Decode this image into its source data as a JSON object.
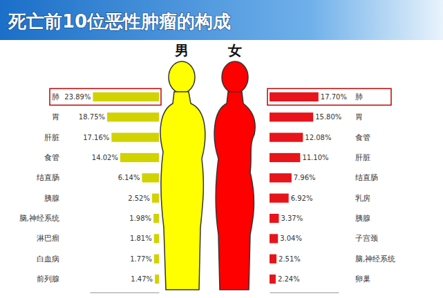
{
  "title": "死亡前10位恶性肿瘤的构成",
  "chart_data": [
    {
      "type": "bar",
      "title": "男",
      "orientation": "horizontal",
      "categories": [
        "肺",
        "胃",
        "肝脏",
        "食管",
        "结直肠",
        "胰腺",
        "脑,神经系统",
        "淋巴瘤",
        "白血病",
        "前列腺"
      ],
      "values": [
        23.89,
        18.75,
        17.16,
        14.02,
        6.14,
        2.52,
        1.98,
        1.81,
        1.77,
        1.47
      ],
      "value_labels": [
        "23.89%",
        "18.75%",
        "17.16%",
        "14.02%",
        "6.14%",
        "2.52%",
        "1.98%",
        "1.81%",
        "1.77%",
        "1.47%"
      ],
      "color": "#d2d200",
      "xlim": [
        0,
        25
      ],
      "xticks": [],
      "data_labels": true,
      "tick_labels": "y"
    },
    {
      "type": "bar",
      "title": "女",
      "orientation": "horizontal",
      "categories": [
        "肺",
        "胃",
        "食管",
        "肝脏",
        "结直肠",
        "乳房",
        "胰腺",
        "子宫颈",
        "脑,神经系统",
        "卵巢"
      ],
      "values": [
        17.7,
        15.8,
        12.08,
        11.1,
        7.96,
        6.92,
        3.37,
        3.04,
        2.51,
        2.24
      ],
      "value_labels": [
        "17.70%",
        "15.80%",
        "12.08%",
        "11.10%",
        "7.96%",
        "6.92%",
        "3.37%",
        "3.04%",
        "2.51%",
        "2.24%"
      ],
      "color": "#e8141b",
      "xlim": [
        0,
        25
      ],
      "xticks": [],
      "data_labels": true,
      "tick_labels": "y"
    }
  ]
}
